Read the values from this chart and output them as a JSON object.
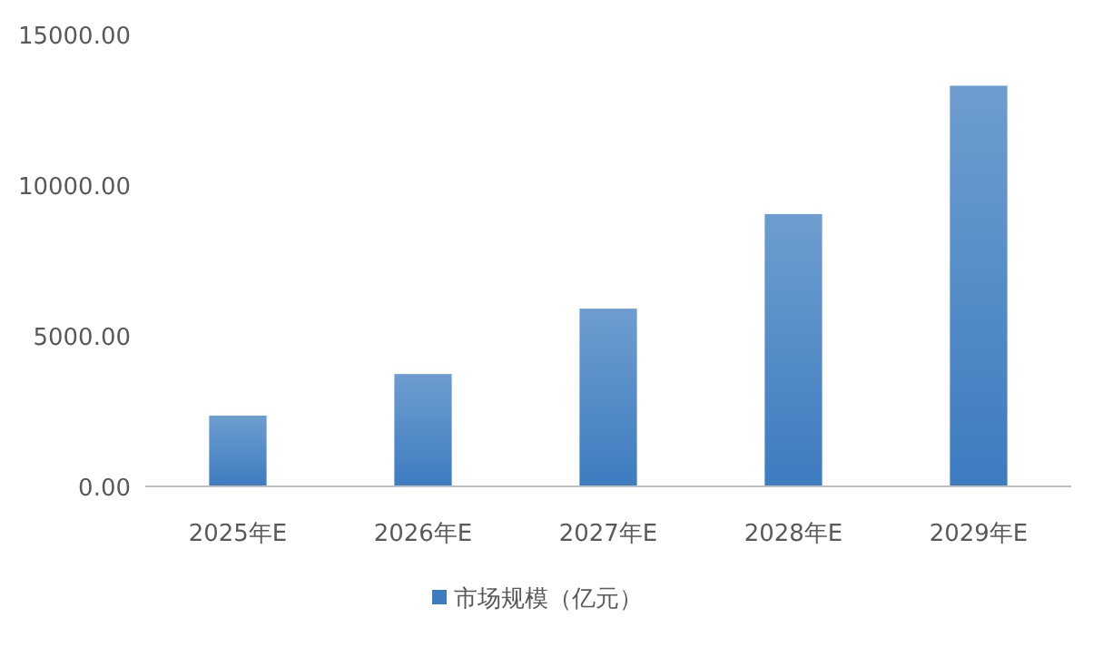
{
  "chart_data": {
    "type": "bar",
    "categories": [
      "2025年E",
      "2026年E",
      "2027年E",
      "2028年E",
      "2029年E"
    ],
    "series": [
      {
        "name": "市场规模（亿元）",
        "color": "#3d7cc0",
        "values": [
          2350,
          3730,
          5900,
          9040,
          13300
        ]
      }
    ],
    "ylim": [
      0,
      15000
    ],
    "yticks": [
      {
        "value": 0,
        "label": "0.00"
      },
      {
        "value": 5000,
        "label": "5000.00"
      },
      {
        "value": 10000,
        "label": "10000.00"
      },
      {
        "value": 15000,
        "label": "15000.00"
      }
    ],
    "grid": false,
    "legend": "bottom"
  }
}
